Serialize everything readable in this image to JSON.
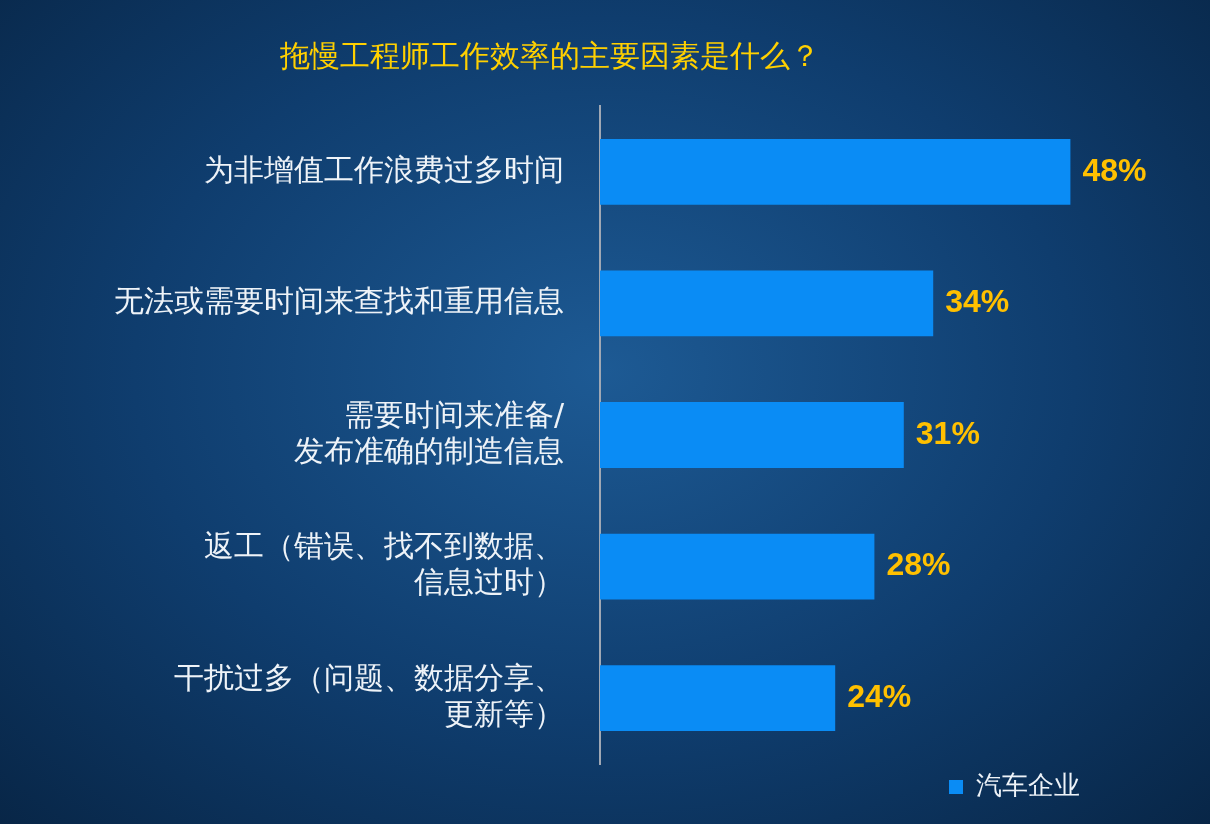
{
  "chart_data": {
    "type": "bar",
    "orientation": "horizontal",
    "title": "拖慢工程师工作效率的主要因素是什么？",
    "categories": [
      "为非增值工作浪费过多时间",
      "无法或需要时间来查找和重用信息",
      "需要时间来准备/发布准确的制造信息",
      "返工（错误、找不到数据、信息过时）",
      "干扰过多（问题、数据分享、更新等）"
    ],
    "series": [
      {
        "name": "汽车企业",
        "color": "#0a8cf5",
        "values": [
          48,
          34,
          31,
          28,
          24
        ],
        "value_labels": [
          "48%",
          "34%",
          "31%",
          "28%",
          "24%"
        ]
      }
    ],
    "legend": "bottom right"
  }
}
